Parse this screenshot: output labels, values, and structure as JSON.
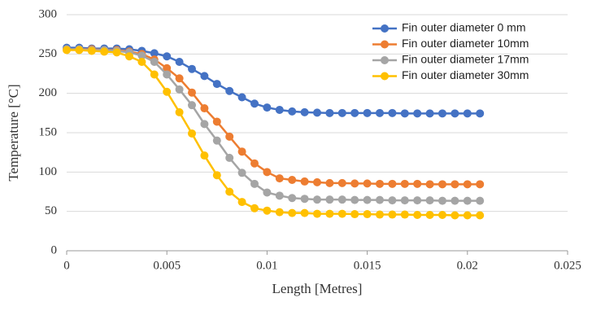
{
  "chart_data": {
    "type": "line",
    "x_label": "Length [Metres]",
    "y_label": "Temperature [°C]",
    "x": [
      0,
      0.000625,
      0.00125,
      0.001875,
      0.0025,
      0.003125,
      0.00375,
      0.004375,
      0.005,
      0.005625,
      0.00625,
      0.006875,
      0.0075,
      0.008125,
      0.00875,
      0.009375,
      0.01,
      0.010625,
      0.01125,
      0.011875,
      0.0125,
      0.013125,
      0.01375,
      0.014375,
      0.015,
      0.015625,
      0.01625,
      0.016875,
      0.0175,
      0.018125,
      0.01875,
      0.019375,
      0.02,
      0.020625
    ],
    "series": [
      {
        "name": "Fin outer diameter 0 mm",
        "color": "#4472c4",
        "values": [
          258,
          258,
          257,
          257,
          257,
          256,
          254,
          251,
          247,
          240,
          231,
          222,
          212,
          203,
          195,
          187,
          182,
          179,
          177,
          176,
          175.5,
          175,
          175,
          175,
          175,
          175,
          175,
          174.5,
          174.5,
          174.5,
          174.5,
          174.5,
          174.5,
          174.5
        ]
      },
      {
        "name": "Fin outer diameter 10mm",
        "color": "#ed7d31",
        "values": [
          256,
          256,
          256,
          255,
          255,
          253,
          250,
          243,
          232,
          219,
          201,
          181,
          164,
          145,
          126,
          111,
          100,
          92,
          90,
          88,
          87,
          86,
          86,
          85.5,
          85.5,
          85,
          85,
          85,
          85,
          84.5,
          84.5,
          84.5,
          84.5,
          84.5
        ]
      },
      {
        "name": "Fin outer diameter 17mm",
        "color": "#a5a5a5",
        "values": [
          256,
          256,
          255,
          255,
          254,
          252,
          248,
          240,
          224,
          205,
          185,
          161,
          140,
          118,
          99,
          85,
          74,
          70,
          67,
          66,
          65,
          65,
          65,
          64.5,
          64.5,
          64.5,
          64,
          64,
          64,
          64,
          63.5,
          63.5,
          63.5,
          63.5
        ]
      },
      {
        "name": "Fin outer diameter 30mm",
        "color": "#ffc000",
        "values": [
          255,
          255,
          254,
          253,
          252,
          247,
          240,
          224,
          202,
          176,
          149,
          121,
          96,
          75,
          62,
          54,
          51,
          49,
          48,
          48,
          47,
          47,
          47,
          46.5,
          46.5,
          46,
          46,
          46,
          45.5,
          45.5,
          45.5,
          45,
          45,
          45
        ]
      }
    ],
    "xlim": [
      0,
      0.025
    ],
    "xticks": [
      0,
      0.005,
      0.01,
      0.015,
      0.02,
      0.025
    ],
    "ylim": [
      0,
      300
    ],
    "yticks": [
      0,
      50,
      100,
      150,
      200,
      250,
      300
    ],
    "grid": true,
    "legend": "upper right"
  }
}
